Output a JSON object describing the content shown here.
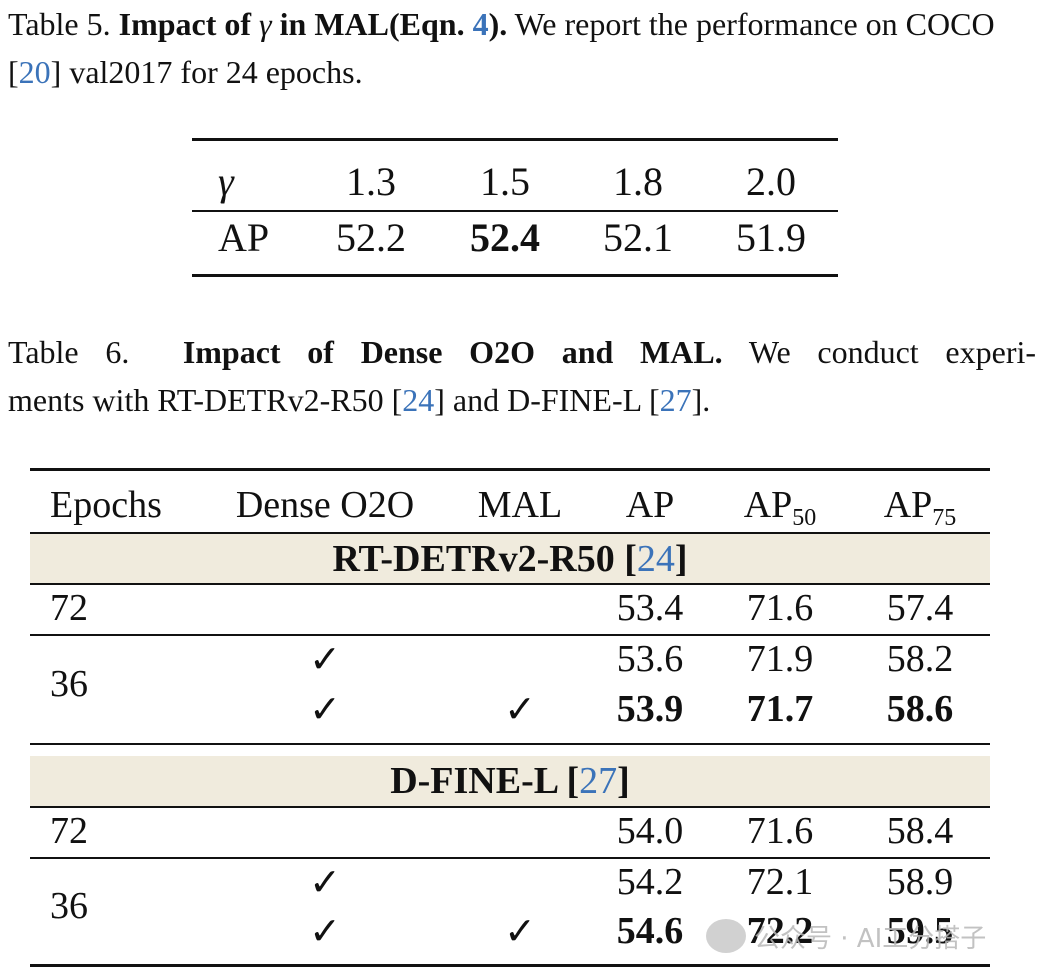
{
  "table5": {
    "caption": {
      "prefix": "Table 5.",
      "bold_part1": "Impact of ",
      "bold_gamma": "γ",
      "bold_part2": " in MAL(Eqn. ",
      "bold_ref": "4",
      "bold_part3": ").",
      "rest1": " We report the performance on COCO [",
      "ref_coco": "20",
      "rest2": "] val2017 for 24 epochs."
    },
    "row_labels": [
      "γ",
      "AP"
    ],
    "gamma_values": [
      "1.3",
      "1.5",
      "1.8",
      "2.0"
    ],
    "ap_values": [
      "52.2",
      "52.4",
      "52.1",
      "51.9"
    ],
    "best_index": 1
  },
  "table6": {
    "caption": {
      "prefix": "Table 6.",
      "bold": "Impact of Dense O2O and MAL.",
      "line1_rest": " We conduct experi-",
      "line2_a": "ments with RT-DETRv2-R50 [",
      "ref_rt": "24",
      "line2_b": "] and D-FINE-L [",
      "ref_df": "27",
      "line2_c": "]."
    },
    "headers": {
      "epochs": "Epochs",
      "dense": "Dense O2O",
      "mal": "MAL",
      "ap": "AP",
      "ap50": "AP",
      "ap50_sub": "50",
      "ap75": "AP",
      "ap75_sub": "75"
    },
    "check_mark": "✓",
    "sections": [
      {
        "name": "RT-DETRv2-R50 [",
        "ref": "24",
        "close": "]",
        "rows": [
          {
            "epochs": "72",
            "ap": "53.4",
            "ap50": "71.6",
            "ap75": "57.4"
          },
          {
            "epochs": "36",
            "ap": "53.6",
            "ap50": "71.9",
            "ap75": "58.2"
          },
          {
            "ap": "53.9",
            "ap50": "71.7",
            "ap75": "58.6"
          }
        ]
      },
      {
        "name": "D-FINE-L [",
        "ref": "27",
        "close": "]",
        "rows": [
          {
            "epochs": "72",
            "ap": "54.0",
            "ap50": "71.6",
            "ap75": "58.4"
          },
          {
            "epochs": "36",
            "ap": "54.2",
            "ap50": "72.1",
            "ap75": "58.9"
          },
          {
            "ap": "54.6",
            "ap50": "72.2",
            "ap75": "59.5"
          }
        ]
      }
    ]
  },
  "watermark": {
    "text": "公众号 · AI工分搭子"
  }
}
